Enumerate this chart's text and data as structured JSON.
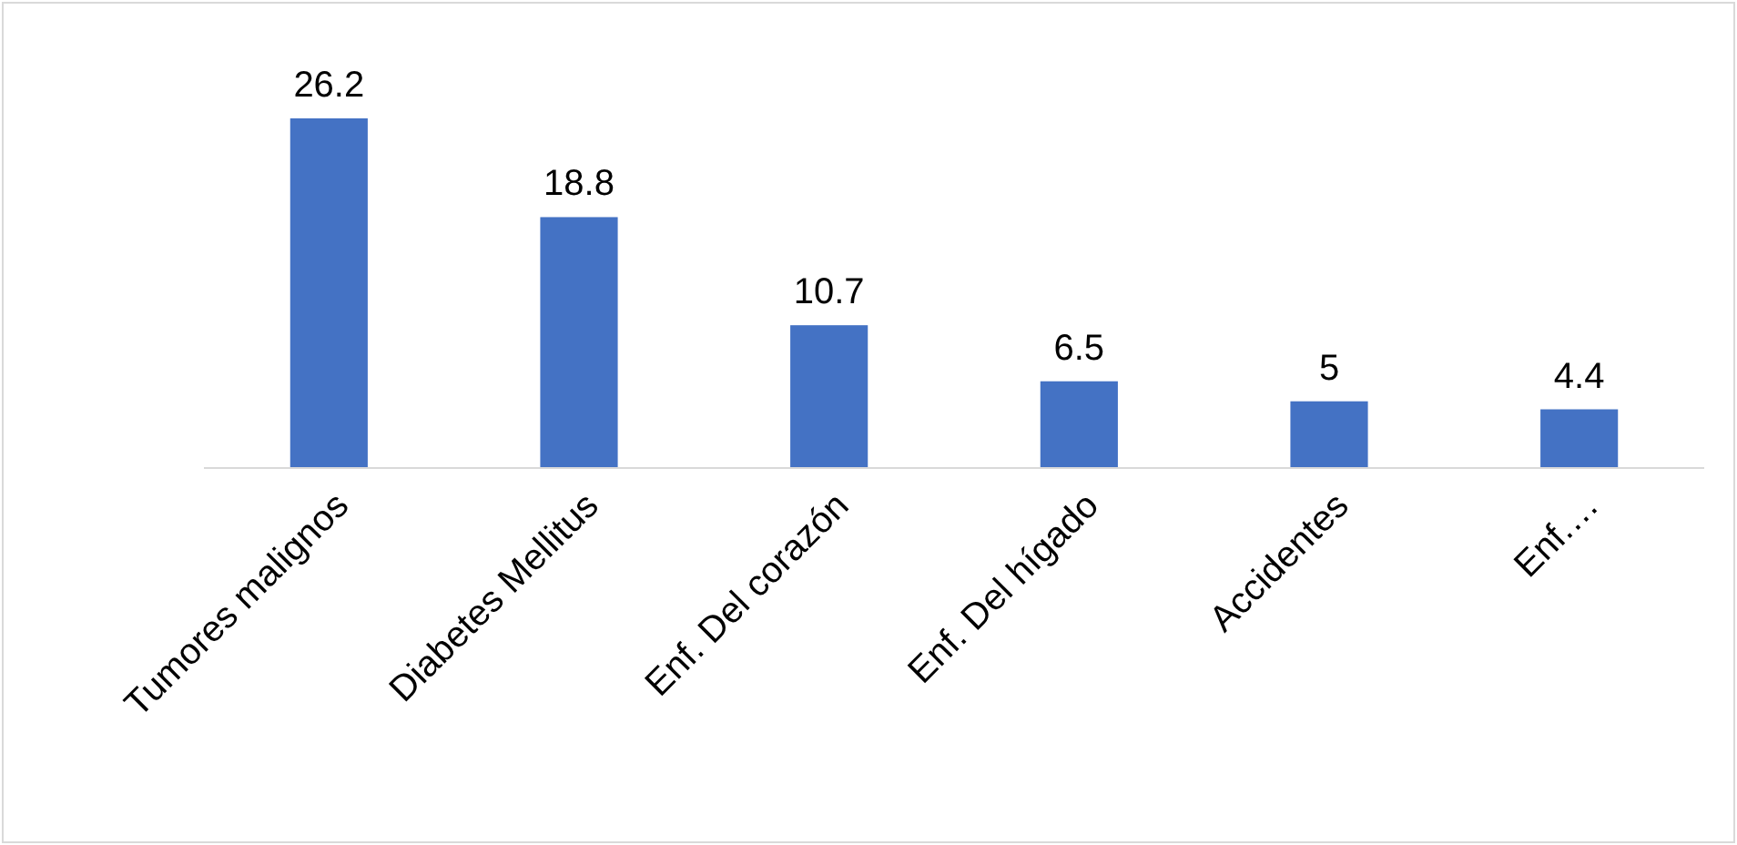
{
  "chart_data": {
    "type": "bar",
    "categories": [
      "Tumores malignos",
      "Diabetes Mellitus",
      "Enf. Del corazón",
      "Enf. Del hígado",
      "Accidentes",
      "Enf.…"
    ],
    "values": [
      26.2,
      18.8,
      10.7,
      6.5,
      5,
      4.4
    ],
    "color": "#4472c4",
    "data_labels": true
  }
}
